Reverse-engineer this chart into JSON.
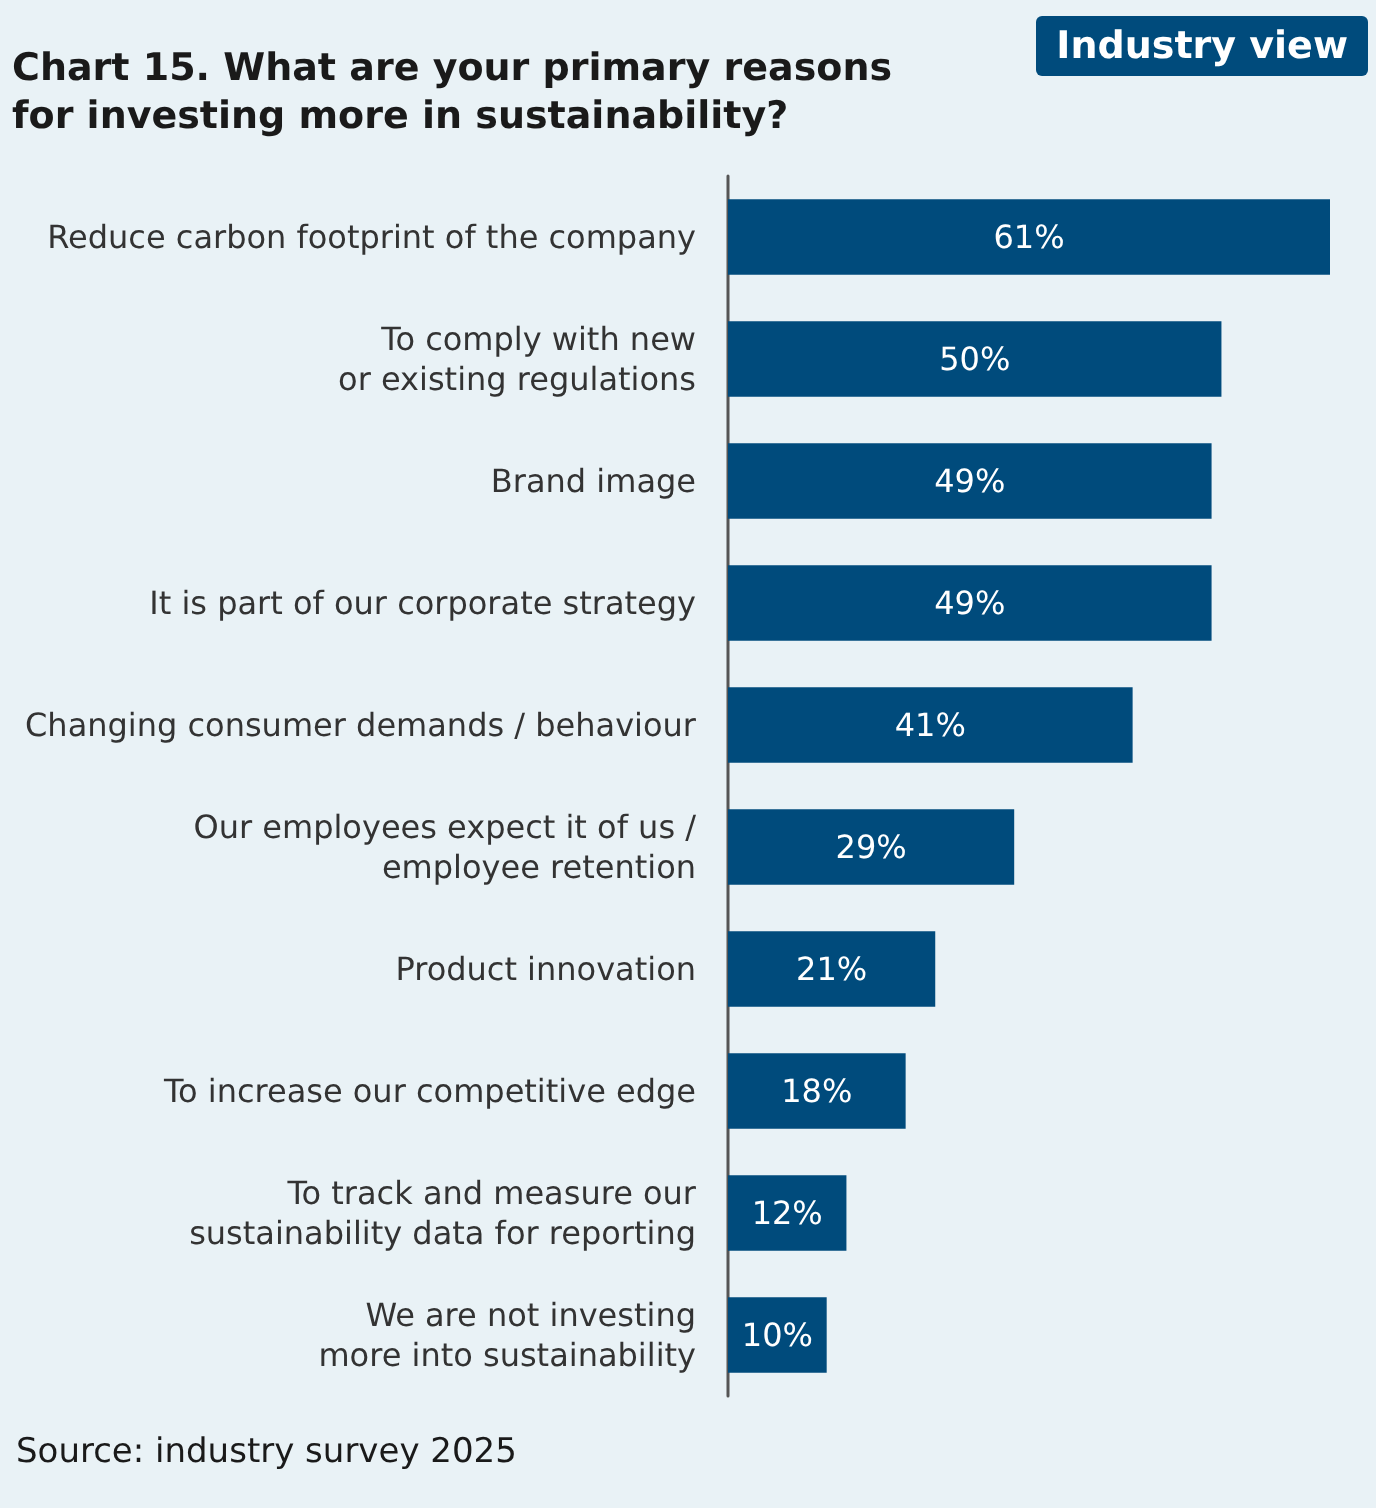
{
  "chart_data": {
    "type": "bar",
    "orientation": "horizontal",
    "title": "Chart 15. What are your primary reasons for investing more in sustainability?",
    "categories": [
      "Reduce carbon footprint of the company",
      "To comply with new\nor existing regulations",
      "Brand image",
      "It is part of our corporate strategy",
      "Changing consumer demands / behaviour",
      "Our employees expect it of us /\nemployee retention",
      "Product innovation",
      "To increase our competitive edge",
      "To track and measure our\nsustainability data for reporting",
      "We are not investing\nmore into sustainability"
    ],
    "values": [
      61,
      50,
      49,
      49,
      41,
      29,
      21,
      18,
      12,
      10
    ],
    "value_labels": [
      "61%",
      "50%",
      "49%",
      "49%",
      "41%",
      "29%",
      "21%",
      "18%",
      "12%",
      "10%"
    ],
    "color": "#004b7c",
    "annotations": [
      "Industry view",
      "Source: industry survey 2025"
    ]
  }
}
